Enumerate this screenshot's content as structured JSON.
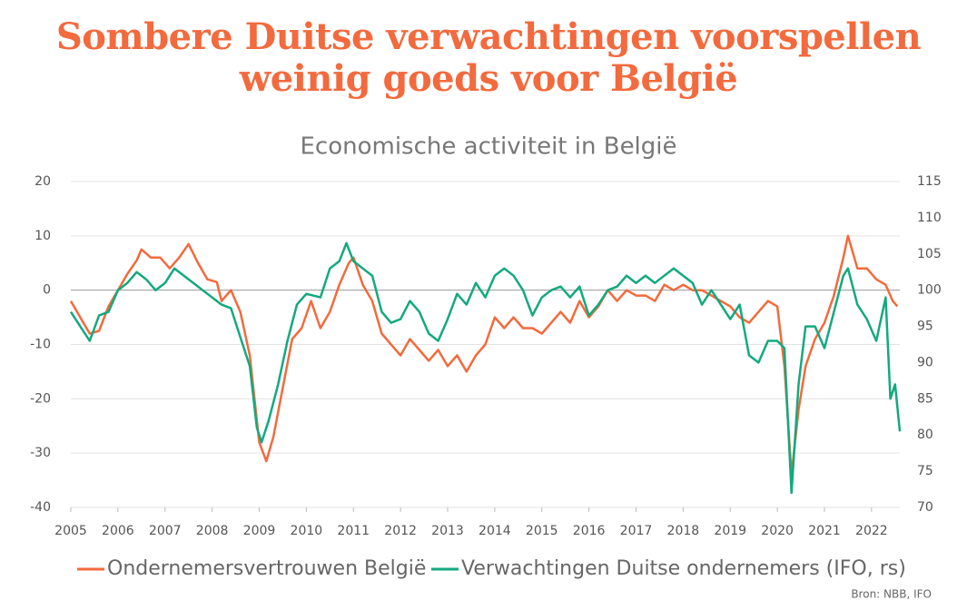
{
  "chart_data": {
    "type": "line",
    "title": "Sombere Duitse verwachtingen voorspellen weinig goeds voor België",
    "subtitle": "Economische activiteit in België",
    "source": "Bron: NBB, IFO",
    "xlim": [
      2005,
      2022.6
    ],
    "xticks": [
      2005,
      2006,
      2007,
      2008,
      2009,
      2010,
      2011,
      2012,
      2013,
      2014,
      2015,
      2016,
      2017,
      2018,
      2019,
      2020,
      2021,
      2022
    ],
    "ylim": [
      -40,
      20
    ],
    "yticks": [
      -40,
      -30,
      -20,
      -10,
      0,
      10,
      20
    ],
    "y2lim": [
      70,
      115
    ],
    "y2ticks": [
      70,
      75,
      80,
      85,
      90,
      95,
      100,
      105,
      110,
      115
    ],
    "grid": true,
    "series": [
      {
        "name": "Ondernemersvertrouwen België",
        "color": "#f26a3d",
        "axis": "y",
        "x": [
          2005,
          2005.2,
          2005.4,
          2005.6,
          2005.8,
          2006,
          2006.2,
          2006.4,
          2006.5,
          2006.7,
          2006.9,
          2007.1,
          2007.3,
          2007.5,
          2007.7,
          2007.9,
          2008.1,
          2008.2,
          2008.4,
          2008.6,
          2008.8,
          2009,
          2009.15,
          2009.3,
          2009.5,
          2009.7,
          2009.9,
          2010.1,
          2010.3,
          2010.5,
          2010.7,
          2010.9,
          2011,
          2011.2,
          2011.4,
          2011.6,
          2011.8,
          2012,
          2012.2,
          2012.4,
          2012.6,
          2012.8,
          2013,
          2013.2,
          2013.4,
          2013.6,
          2013.8,
          2014,
          2014.2,
          2014.4,
          2014.6,
          2014.8,
          2015,
          2015.2,
          2015.4,
          2015.6,
          2015.8,
          2016,
          2016.2,
          2016.4,
          2016.6,
          2016.8,
          2017,
          2017.2,
          2017.4,
          2017.6,
          2017.8,
          2018,
          2018.2,
          2018.4,
          2018.6,
          2018.8,
          2019,
          2019.2,
          2019.4,
          2019.6,
          2019.8,
          2020,
          2020.15,
          2020.3,
          2020.45,
          2020.6,
          2020.8,
          2021,
          2021.2,
          2021.4,
          2021.5,
          2021.7,
          2021.9,
          2022.1,
          2022.3,
          2022.45,
          2022.55
        ],
        "values": [
          -2,
          -5,
          -8,
          -7.5,
          -3,
          0,
          3,
          5.5,
          7.5,
          6,
          6,
          4,
          6,
          8.5,
          5,
          2,
          1.5,
          -2,
          0,
          -4,
          -12,
          -28,
          -31.5,
          -27,
          -18,
          -9,
          -7,
          -2,
          -7,
          -4,
          1,
          5,
          6,
          1,
          -2,
          -8,
          -10,
          -12,
          -9,
          -11,
          -13,
          -11,
          -14,
          -12,
          -15,
          -12,
          -10,
          -5,
          -7,
          -5,
          -7,
          -7,
          -8,
          -6,
          -4,
          -6,
          -2,
          -5,
          -3,
          0,
          -2,
          0,
          -1,
          -1,
          -2,
          1,
          0,
          1,
          0,
          0,
          -1,
          -2,
          -3,
          -5,
          -6,
          -4,
          -2,
          -3,
          -14,
          -34,
          -22,
          -14,
          -9,
          -6,
          -1,
          6,
          10,
          4,
          4,
          2,
          1,
          -2,
          -3
        ]
      },
      {
        "name": "Verwachtingen Duitse ondernemers (IFO, rs)",
        "color": "#13a97f",
        "axis": "y2",
        "x": [
          2005,
          2005.2,
          2005.4,
          2005.6,
          2005.8,
          2006,
          2006.2,
          2006.4,
          2006.6,
          2006.8,
          2007,
          2007.2,
          2007.4,
          2007.6,
          2007.8,
          2008,
          2008.2,
          2008.4,
          2008.6,
          2008.8,
          2008.95,
          2009.05,
          2009.2,
          2009.4,
          2009.6,
          2009.8,
          2010,
          2010.3,
          2010.5,
          2010.7,
          2010.85,
          2011,
          2011.2,
          2011.4,
          2011.6,
          2011.8,
          2012,
          2012.2,
          2012.4,
          2012.6,
          2012.8,
          2013,
          2013.2,
          2013.4,
          2013.6,
          2013.8,
          2014,
          2014.2,
          2014.4,
          2014.6,
          2014.8,
          2015,
          2015.2,
          2015.4,
          2015.6,
          2015.8,
          2016,
          2016.2,
          2016.4,
          2016.6,
          2016.8,
          2017,
          2017.2,
          2017.4,
          2017.6,
          2017.8,
          2018,
          2018.2,
          2018.4,
          2018.6,
          2018.8,
          2019,
          2019.2,
          2019.4,
          2019.6,
          2019.8,
          2020,
          2020.15,
          2020.3,
          2020.45,
          2020.6,
          2020.8,
          2021,
          2021.2,
          2021.4,
          2021.5,
          2021.7,
          2021.9,
          2022.1,
          2022.3,
          2022.4,
          2022.5,
          2022.6
        ],
        "values": [
          97,
          95,
          93,
          96.5,
          97,
          100,
          101,
          102.5,
          101.5,
          100,
          101,
          103,
          102,
          101,
          100,
          99,
          98,
          97.5,
          93.5,
          89.5,
          81,
          79,
          82,
          87,
          93,
          98,
          99.5,
          99,
          103,
          104,
          106.5,
          104,
          103,
          102,
          97,
          95.5,
          96,
          98.5,
          97,
          94,
          93,
          96,
          99.5,
          98,
          101,
          99,
          102,
          103,
          102,
          100,
          96.5,
          99,
          100,
          100.5,
          99,
          100.5,
          96.5,
          98,
          100,
          100.5,
          102,
          101,
          102,
          101,
          102,
          103,
          102,
          101,
          98,
          100,
          98,
          96,
          98,
          91,
          90,
          93,
          93,
          92,
          72,
          87,
          95,
          95,
          92,
          97,
          102,
          103,
          98,
          96,
          93,
          99,
          85,
          87,
          80.5
        ]
      }
    ]
  }
}
